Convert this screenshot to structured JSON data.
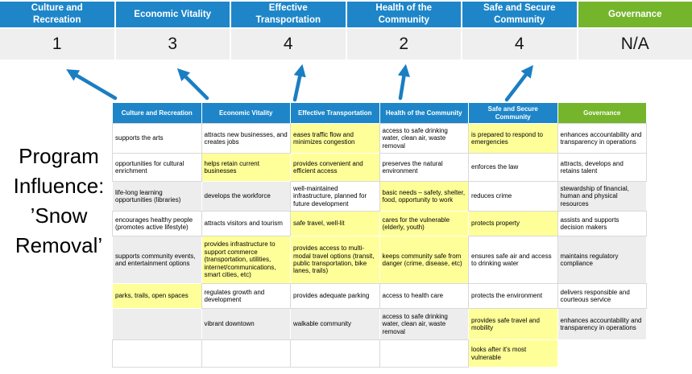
{
  "slide_title": {
    "label": "Program Influence: ’Snow Removal’",
    "lines": [
      "Program",
      "Influence:",
      "’Snow",
      "Removal’"
    ]
  },
  "colors": {
    "blue": "#1e86c8",
    "green": "#75b52b",
    "band": "#efeff0",
    "cellgray": "#ededed",
    "yellow": "#ffff99",
    "border": "#d9d9d9",
    "arrow": "#1a7ec2"
  },
  "summary": {
    "columns": [
      {
        "label": "Culture and Recreation",
        "lines": [
          "Culture and",
          "Recreation"
        ],
        "color": "blue",
        "value": "1"
      },
      {
        "label": "Economic Vitality",
        "lines": [
          "Economic Vitality"
        ],
        "color": "blue",
        "value": "3"
      },
      {
        "label": "Effective Transportation",
        "lines": [
          "Effective",
          "Transportation"
        ],
        "color": "blue",
        "value": "4"
      },
      {
        "label": "Health of the Community",
        "lines": [
          "Health of the",
          "Community"
        ],
        "color": "blue",
        "value": "2"
      },
      {
        "label": "Safe and Secure Community",
        "lines": [
          "Safe and Secure",
          "Community"
        ],
        "color": "blue",
        "value": "4"
      },
      {
        "label": "Governance",
        "lines": [
          "Governance"
        ],
        "color": "green",
        "value": "N/A"
      }
    ]
  },
  "matrix": {
    "columns": [
      {
        "header": {
          "label": "Culture and Recreation",
          "lines": [
            "Culture and Recreation"
          ],
          "color": "blue"
        },
        "cells": [
          {
            "text": "supports the arts",
            "bg": "white"
          },
          {
            "text": "opportunities for cultural enrichment",
            "bg": "white"
          },
          {
            "text": "life-long learning opportunities (libraries)",
            "bg": "gray"
          },
          {
            "text": "encourages healthy people (promotes active lifestyle)",
            "bg": "white"
          },
          {
            "text": "supports community events, and entertainment options",
            "bg": "gray"
          },
          {
            "text": "parks, trails, open spaces",
            "bg": "yellow"
          },
          {
            "text": "",
            "bg": "gray"
          },
          {
            "text": "",
            "bg": "white"
          }
        ]
      },
      {
        "header": {
          "label": "Economic Vitality",
          "lines": [
            "Economic Vitality"
          ],
          "color": "blue"
        },
        "cells": [
          {
            "text": "attracts new businesses, and creates jobs",
            "bg": "white"
          },
          {
            "text": "helps retain current businesses",
            "bg": "yellow"
          },
          {
            "text": "develops the workforce",
            "bg": "gray"
          },
          {
            "text": "attracts visitors and tourism",
            "bg": "white"
          },
          {
            "text": "provides infrastructure to support commerce (transportation, utilities, internet/communications, smart cities, etc)",
            "bg": "yellow"
          },
          {
            "text": "regulates growth and development",
            "bg": "white"
          },
          {
            "text": "vibrant downtown",
            "bg": "gray"
          },
          {
            "text": "",
            "bg": "white"
          }
        ]
      },
      {
        "header": {
          "label": "Effective Transportation",
          "lines": [
            "Effective Transportation"
          ],
          "color": "blue"
        },
        "cells": [
          {
            "text": "eases traffic flow and minimizes congestion",
            "bg": "yellow"
          },
          {
            "text": "provides convenient and efficient access",
            "bg": "yellow"
          },
          {
            "text": "well-maintained infrastructure, planned for future development",
            "bg": "white"
          },
          {
            "text": "safe travel, well-lit",
            "bg": "yellow"
          },
          {
            "text": "provides access to multi-modal travel options (transit, public transportation, bike lanes, trails)",
            "bg": "yellow"
          },
          {
            "text": "provides adequate parking",
            "bg": "white"
          },
          {
            "text": "walkable community",
            "bg": "gray"
          },
          {
            "text": "",
            "bg": "white"
          }
        ]
      },
      {
        "header": {
          "label": "Health of the Community",
          "lines": [
            "Health of the Community"
          ],
          "color": "blue"
        },
        "cells": [
          {
            "text": "access to safe drinking water, clean air, waste removal",
            "bg": "white"
          },
          {
            "text": "preserves the natural environment",
            "bg": "white"
          },
          {
            "text": "basic needs – safety, shelter, food, opportunity to work",
            "bg": "yellow"
          },
          {
            "text": "cares for the vulnerable (elderly, youth)",
            "bg": "yellow"
          },
          {
            "text": "keeps community safe from danger (crime, disease, etc)",
            "bg": "yellow"
          },
          {
            "text": "access to health care",
            "bg": "white"
          },
          {
            "text": "access to safe drinking water, clean air, waste removal",
            "bg": "gray"
          },
          {
            "text": "",
            "bg": "white"
          }
        ]
      },
      {
        "header": {
          "label": "Safe and Secure Community",
          "lines": [
            "Safe and Secure",
            "Community"
          ],
          "color": "blue"
        },
        "cells": [
          {
            "text": "is prepared to respond to emergencies",
            "bg": "yellow"
          },
          {
            "text": "enforces the law",
            "bg": "white"
          },
          {
            "text": "reduces crime",
            "bg": "white"
          },
          {
            "text": "protects property",
            "bg": "yellow"
          },
          {
            "text": "ensures safe air and access to drinking water",
            "bg": "white"
          },
          {
            "text": "protects the environment",
            "bg": "white"
          },
          {
            "text": "provides safe travel and mobility",
            "bg": "yellow"
          },
          {
            "text": "looks after it's most vulnerable",
            "bg": "yellow"
          }
        ]
      },
      {
        "header": {
          "label": "Governance",
          "lines": [
            "Governance"
          ],
          "color": "green"
        },
        "cells": [
          {
            "text": "enhances accountability and transparency in operations",
            "bg": "white"
          },
          {
            "text": "attracts, develops and retains talent",
            "bg": "white"
          },
          {
            "text": "stewardship of financial, human and physical resources",
            "bg": "gray"
          },
          {
            "text": "assists and supports decision makers",
            "bg": "white"
          },
          {
            "text": "maintains regulatory compliance",
            "bg": "gray"
          },
          {
            "text": "delivers responsible and courteous service",
            "bg": "white"
          },
          {
            "text": "enhances accountability and transparency in operations",
            "bg": "gray"
          },
          {
            "text": "",
            "bg": "white",
            "noborder": true
          }
        ]
      }
    ]
  }
}
